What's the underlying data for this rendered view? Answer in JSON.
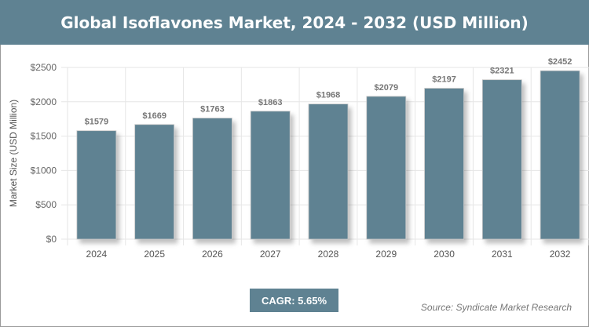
{
  "chart_data": {
    "type": "bar",
    "title": "Global Isoflavones Market, 2024 - 2032 (USD Million)",
    "ylabel": "Market Size (USD Million)",
    "xlabel": "",
    "categories": [
      "2024",
      "2025",
      "2026",
      "2027",
      "2028",
      "2029",
      "2030",
      "2031",
      "2032"
    ],
    "values": [
      1579,
      1669,
      1763,
      1863,
      1968,
      2079,
      2197,
      2321,
      2452
    ],
    "data_labels": [
      "$1579",
      "$1669",
      "$1763",
      "$1863",
      "$1968",
      "$2079",
      "$2197",
      "$2321",
      "$2452"
    ],
    "ylim": [
      0,
      2500
    ],
    "yticks": [
      0,
      500,
      1000,
      1500,
      2000,
      2500
    ],
    "ytick_labels": [
      "$0",
      "$500",
      "$1000",
      "$1500",
      "$2000",
      "$2500"
    ],
    "grid": true,
    "bar_color": "#5f8292"
  },
  "cagr": "CAGR: 5.65%",
  "source": "Source: Syndicate Market Research"
}
